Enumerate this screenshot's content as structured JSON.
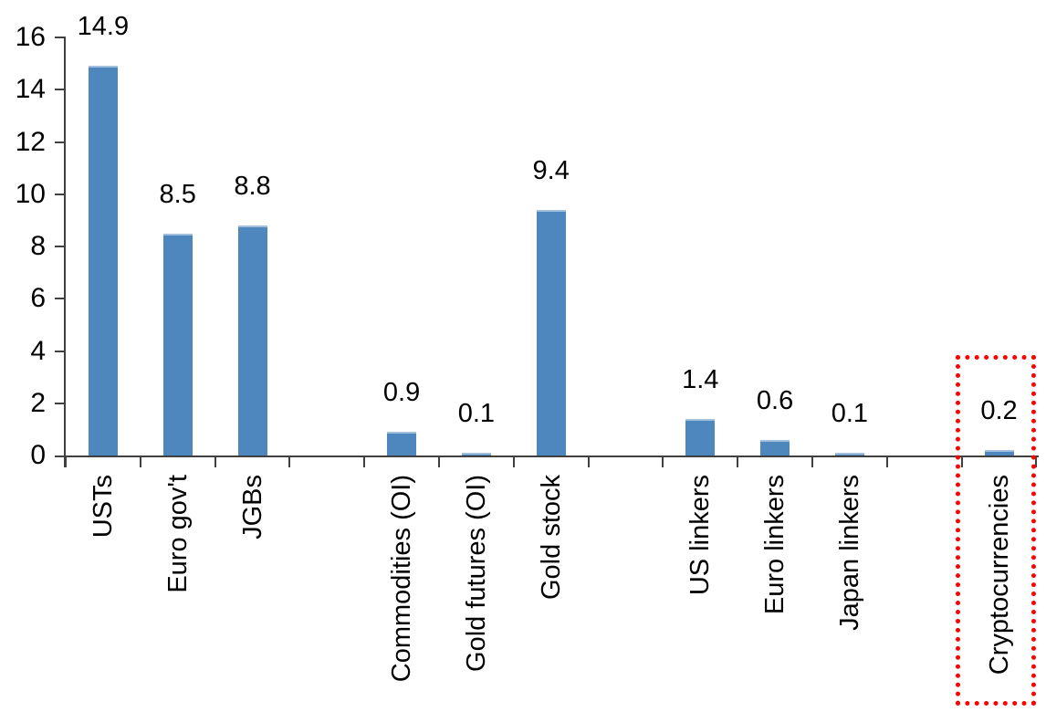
{
  "chart_data": {
    "type": "bar",
    "title": "",
    "xlabel": "",
    "ylabel": "",
    "ylim": [
      0,
      16
    ],
    "y_ticks": [
      0,
      2,
      4,
      6,
      8,
      10,
      12,
      14,
      16
    ],
    "y_tick_labels": [
      "0",
      "2",
      "4",
      "6",
      "8",
      "10",
      "12",
      "14",
      "16"
    ],
    "grid": false,
    "legend": false,
    "total_slots": 13,
    "gap_slots": [
      3,
      7,
      11
    ],
    "categories": [
      "USTs",
      "Euro gov't",
      "JGBs",
      "Commodities (OI)",
      "Gold futures (OI)",
      "Gold stock",
      "US linkers",
      "Euro linkers",
      "Japan linkers",
      "Cryptocurrencies"
    ],
    "values": [
      14.9,
      8.5,
      8.8,
      0.9,
      0.1,
      9.4,
      1.4,
      0.6,
      0.1,
      0.2
    ],
    "points": [
      {
        "id": "usts",
        "label": "USTs",
        "value": 14.9,
        "value_label": "14.9",
        "slot": 0
      },
      {
        "id": "euro-govt",
        "label": "Euro gov't",
        "value": 8.5,
        "value_label": "8.5",
        "slot": 1
      },
      {
        "id": "jgbs",
        "label": "JGBs",
        "value": 8.8,
        "value_label": "8.8",
        "slot": 2
      },
      {
        "id": "commodities-oi",
        "label": "Commodities (OI)",
        "value": 0.9,
        "value_label": "0.9",
        "slot": 4
      },
      {
        "id": "gold-futures-oi",
        "label": "Gold futures (OI)",
        "value": 0.1,
        "value_label": "0.1",
        "slot": 5
      },
      {
        "id": "gold-stock",
        "label": "Gold stock",
        "value": 9.4,
        "value_label": "9.4",
        "slot": 6
      },
      {
        "id": "us-linkers",
        "label": "US linkers",
        "value": 1.4,
        "value_label": "1.4",
        "slot": 8
      },
      {
        "id": "euro-linkers",
        "label": "Euro linkers",
        "value": 0.6,
        "value_label": "0.6",
        "slot": 9
      },
      {
        "id": "japan-linkers",
        "label": "Japan linkers",
        "value": 0.1,
        "value_label": "0.1",
        "slot": 10
      },
      {
        "id": "cryptocurrencies",
        "label": "Cryptocurrencies",
        "value": 0.2,
        "value_label": "0.2",
        "slot": 12
      }
    ],
    "colors": {
      "bar_fill": "#4E87BE",
      "bar_top_edge": "#A2C0DB",
      "axis": "#404040",
      "text": "#000000",
      "highlight_box": "#FF0000"
    },
    "highlight": {
      "category": "Cryptocurrencies",
      "style": "dotted-red-box"
    }
  }
}
